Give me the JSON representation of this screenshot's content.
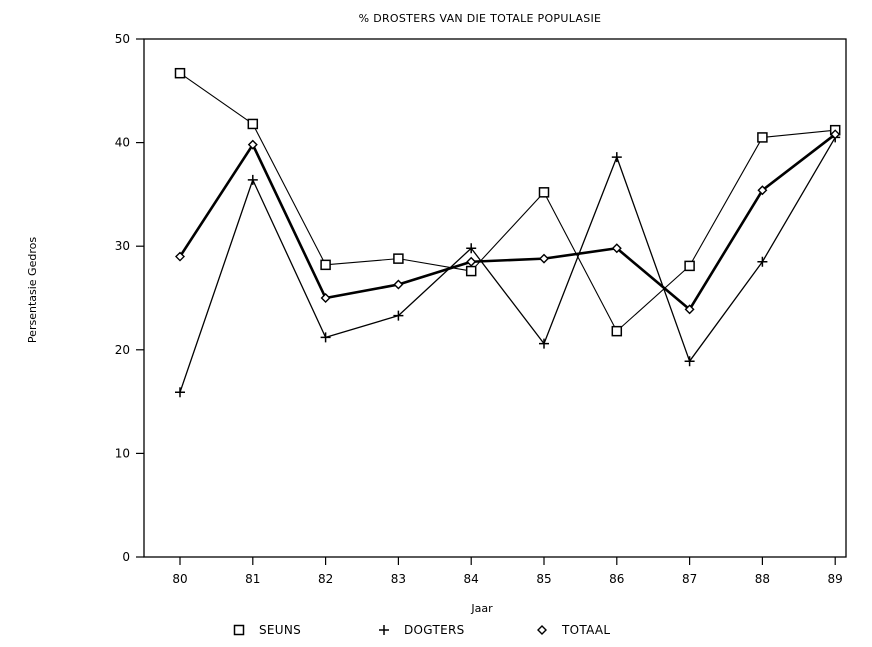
{
  "chart_data": {
    "type": "line",
    "title": "% DROSTERS VAN DIE TOTALE POPULASIE",
    "xlabel": "Jaar",
    "ylabel": "Persentasie Gedros",
    "categories": [
      "80",
      "81",
      "82",
      "83",
      "84",
      "85",
      "86",
      "87",
      "88",
      "89"
    ],
    "ylim": [
      0,
      50
    ],
    "yticks": [
      "0",
      "10",
      "20",
      "30",
      "40",
      "50"
    ],
    "grid": false,
    "legend_position": "bottom",
    "series": [
      {
        "name": "SEUNS",
        "marker": "square",
        "values": [
          46.7,
          41.8,
          28.2,
          28.8,
          27.6,
          35.2,
          21.8,
          28.1,
          40.5,
          41.2
        ]
      },
      {
        "name": "DOGTERS",
        "marker": "plus",
        "values": [
          15.9,
          36.4,
          21.2,
          23.3,
          29.8,
          20.6,
          38.6,
          18.9,
          28.5,
          40.5
        ]
      },
      {
        "name": "TOTAAL",
        "marker": "diamond",
        "values": [
          29.0,
          39.8,
          25.0,
          26.3,
          28.5,
          28.8,
          29.8,
          23.9,
          35.4,
          40.8
        ]
      }
    ]
  }
}
